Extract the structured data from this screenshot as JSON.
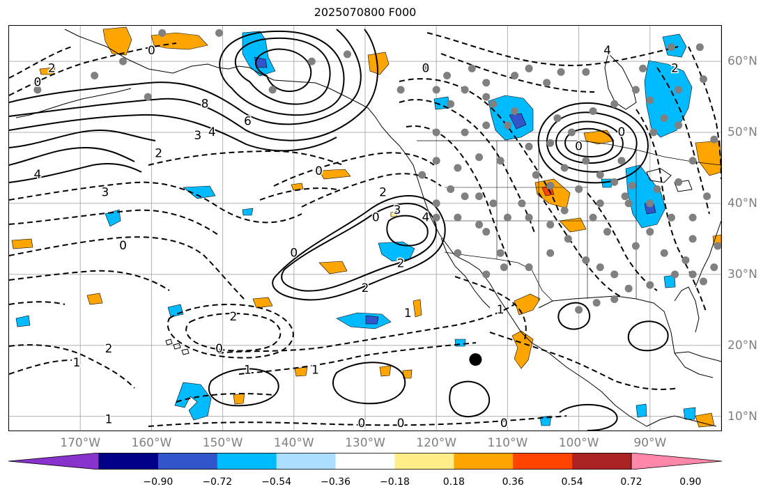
{
  "title": "2025070800 F000",
  "map": {
    "region": "North Pacific and North America",
    "lon_range": [
      -180,
      -80
    ],
    "lat_range": [
      8,
      65
    ],
    "lon_ticks": [
      "170°W",
      "160°W",
      "150°W",
      "140°W",
      "130°W",
      "120°W",
      "110°W",
      "100°W",
      "90°W"
    ],
    "lat_ticks": [
      "10°N",
      "20°N",
      "30°N",
      "40°N",
      "50°N",
      "60°N"
    ],
    "contour_labels": [
      {
        "text": "8",
        "lon": -152.5,
        "lat": 54
      },
      {
        "text": "6",
        "lon": -146.5,
        "lat": 51.5
      },
      {
        "text": "4",
        "lon": -151.5,
        "lat": 50
      },
      {
        "text": "3",
        "lon": -153.5,
        "lat": 49.5
      },
      {
        "text": "2",
        "lon": -159,
        "lat": 47
      },
      {
        "text": "0",
        "lon": -136.5,
        "lat": 44.5
      },
      {
        "text": "3",
        "lon": -166.5,
        "lat": 41.5
      },
      {
        "text": "0",
        "lon": -164,
        "lat": 34
      },
      {
        "text": "0",
        "lon": -140,
        "lat": 33
      },
      {
        "text": "0",
        "lon": -128.5,
        "lat": 38
      },
      {
        "text": "2",
        "lon": -127.5,
        "lat": 41.5
      },
      {
        "text": "3",
        "lon": -125.5,
        "lat": 39
      },
      {
        "text": "4",
        "lon": -121.5,
        "lat": 38
      },
      {
        "text": "2",
        "lon": -125,
        "lat": 31.5
      },
      {
        "text": "2",
        "lon": -130,
        "lat": 28
      },
      {
        "text": "1",
        "lon": -124,
        "lat": 24.5
      },
      {
        "text": "2",
        "lon": -148.5,
        "lat": 24
      },
      {
        "text": "0",
        "lon": -150.5,
        "lat": 19.5
      },
      {
        "text": "1",
        "lon": -146.5,
        "lat": 16.5
      },
      {
        "text": "1",
        "lon": -137,
        "lat": 16.5
      },
      {
        "text": "0",
        "lon": -130.5,
        "lat": 9
      },
      {
        "text": "0",
        "lon": -125,
        "lat": 9
      },
      {
        "text": "0",
        "lon": -110.5,
        "lat": 9
      },
      {
        "text": "1",
        "lon": -166,
        "lat": 9.5
      },
      {
        "text": "2",
        "lon": -166,
        "lat": 19.5
      },
      {
        "text": "1",
        "lon": -170.5,
        "lat": 17.5
      },
      {
        "text": "0",
        "lon": -160,
        "lat": 61.5
      },
      {
        "text": "2",
        "lon": -174,
        "lat": 59
      },
      {
        "text": "0",
        "lon": -176,
        "lat": 57
      },
      {
        "text": "0",
        "lon": -121.5,
        "lat": 59
      },
      {
        "text": "4",
        "lon": -96,
        "lat": 61.5
      },
      {
        "text": "0",
        "lon": -94,
        "lat": 50
      },
      {
        "text": "0",
        "lon": -100,
        "lat": 48
      },
      {
        "text": "2",
        "lon": -86.5,
        "lat": 59
      },
      {
        "text": "1",
        "lon": -111,
        "lat": 25
      },
      {
        "text": "4",
        "lon": -176,
        "lat": 44
      }
    ],
    "stations": [
      [
        -164,
        60
      ],
      [
        -158.5,
        64
      ],
      [
        -150.5,
        64
      ],
      [
        -160.5,
        55
      ],
      [
        -176,
        56
      ],
      [
        -168,
        58
      ],
      [
        -143,
        56
      ],
      [
        -137.5,
        60
      ],
      [
        -132.5,
        61
      ],
      [
        -125,
        56
      ],
      [
        -121.5,
        59
      ],
      [
        -118.5,
        58
      ],
      [
        -115,
        59
      ],
      [
        -113,
        57
      ],
      [
        -109,
        58
      ],
      [
        -107,
        59
      ],
      [
        -104.5,
        57
      ],
      [
        -102.5,
        58.5
      ],
      [
        -99,
        58.5
      ],
      [
        -91,
        59
      ],
      [
        -87,
        62
      ],
      [
        -83,
        62
      ],
      [
        -82.5,
        57.5
      ],
      [
        -86,
        56
      ],
      [
        -90,
        54.5
      ],
      [
        -92,
        56
      ],
      [
        -95,
        54
      ],
      [
        -88,
        52
      ],
      [
        -89.5,
        50
      ],
      [
        -86,
        51
      ],
      [
        -81,
        49
      ],
      [
        -84,
        46
      ],
      [
        -86,
        43
      ],
      [
        -89,
        42
      ],
      [
        -82,
        41
      ],
      [
        -84,
        38
      ],
      [
        -87,
        38
      ],
      [
        -90,
        36
      ],
      [
        -92,
        34
      ],
      [
        -88,
        33
      ],
      [
        -85,
        32
      ],
      [
        -84,
        35
      ],
      [
        -80.5,
        34
      ],
      [
        -81,
        31
      ],
      [
        -86.5,
        30
      ],
      [
        -84,
        30
      ],
      [
        -82.5,
        29
      ],
      [
        -90,
        28.5
      ],
      [
        -93,
        28
      ],
      [
        -95,
        26.5
      ],
      [
        -97.5,
        26
      ],
      [
        -100,
        25
      ],
      [
        -95,
        30
      ],
      [
        -97,
        31
      ],
      [
        -99,
        32
      ],
      [
        -104,
        33
      ],
      [
        -101.5,
        35
      ],
      [
        -104,
        37
      ],
      [
        -102,
        39
      ],
      [
        -100,
        42
      ],
      [
        -97,
        44
      ],
      [
        -99,
        46
      ],
      [
        -94,
        46
      ],
      [
        -93.5,
        41
      ],
      [
        -92.5,
        42.5
      ],
      [
        -96,
        36
      ],
      [
        -98,
        38
      ],
      [
        -107,
        38
      ],
      [
        -110,
        38
      ],
      [
        -108,
        40
      ],
      [
        -112,
        40
      ],
      [
        -114,
        41
      ],
      [
        -116,
        41
      ],
      [
        -118,
        42
      ],
      [
        -120,
        46
      ],
      [
        -122,
        44
      ],
      [
        -120,
        40
      ],
      [
        -117,
        38
      ],
      [
        -114,
        37
      ],
      [
        -113,
        36
      ],
      [
        -111,
        33
      ],
      [
        -110.5,
        31
      ],
      [
        -107,
        31
      ],
      [
        -113,
        30
      ],
      [
        -117,
        33
      ],
      [
        -120,
        38
      ],
      [
        -120,
        50
      ],
      [
        -116,
        50
      ],
      [
        -113,
        51
      ],
      [
        -110,
        51
      ],
      [
        -107,
        48
      ],
      [
        -104,
        48.5
      ],
      [
        -101,
        50
      ],
      [
        -98,
        53
      ],
      [
        -103,
        52
      ],
      [
        -109,
        53
      ],
      [
        -112,
        54
      ],
      [
        -113,
        55
      ],
      [
        -116,
        56
      ],
      [
        -118,
        54
      ],
      [
        -120,
        56
      ],
      [
        -93,
        40
      ],
      [
        -90,
        40
      ],
      [
        -95,
        43
      ],
      [
        -97,
        40
      ],
      [
        -102,
        45
      ],
      [
        -104,
        42.5
      ],
      [
        -106,
        44
      ],
      [
        -111,
        46
      ],
      [
        -114,
        46.5
      ],
      [
        -117,
        45
      ]
    ],
    "dot": {
      "lon": -114.5,
      "lat": 18
    }
  },
  "colorbar": {
    "colors": [
      "#8833cc",
      "#000088",
      "#3355cc",
      "#00bbff",
      "#aaddff",
      "#ffffff",
      "#ffee88",
      "#ffa500",
      "#ff4400",
      "#aa2222",
      "#ff88aa"
    ],
    "labels": [
      "−0.90",
      "−0.72",
      "−0.54",
      "−0.36",
      "−0.18",
      "0.18",
      "0.36",
      "0.54",
      "0.72",
      "0.90"
    ]
  }
}
